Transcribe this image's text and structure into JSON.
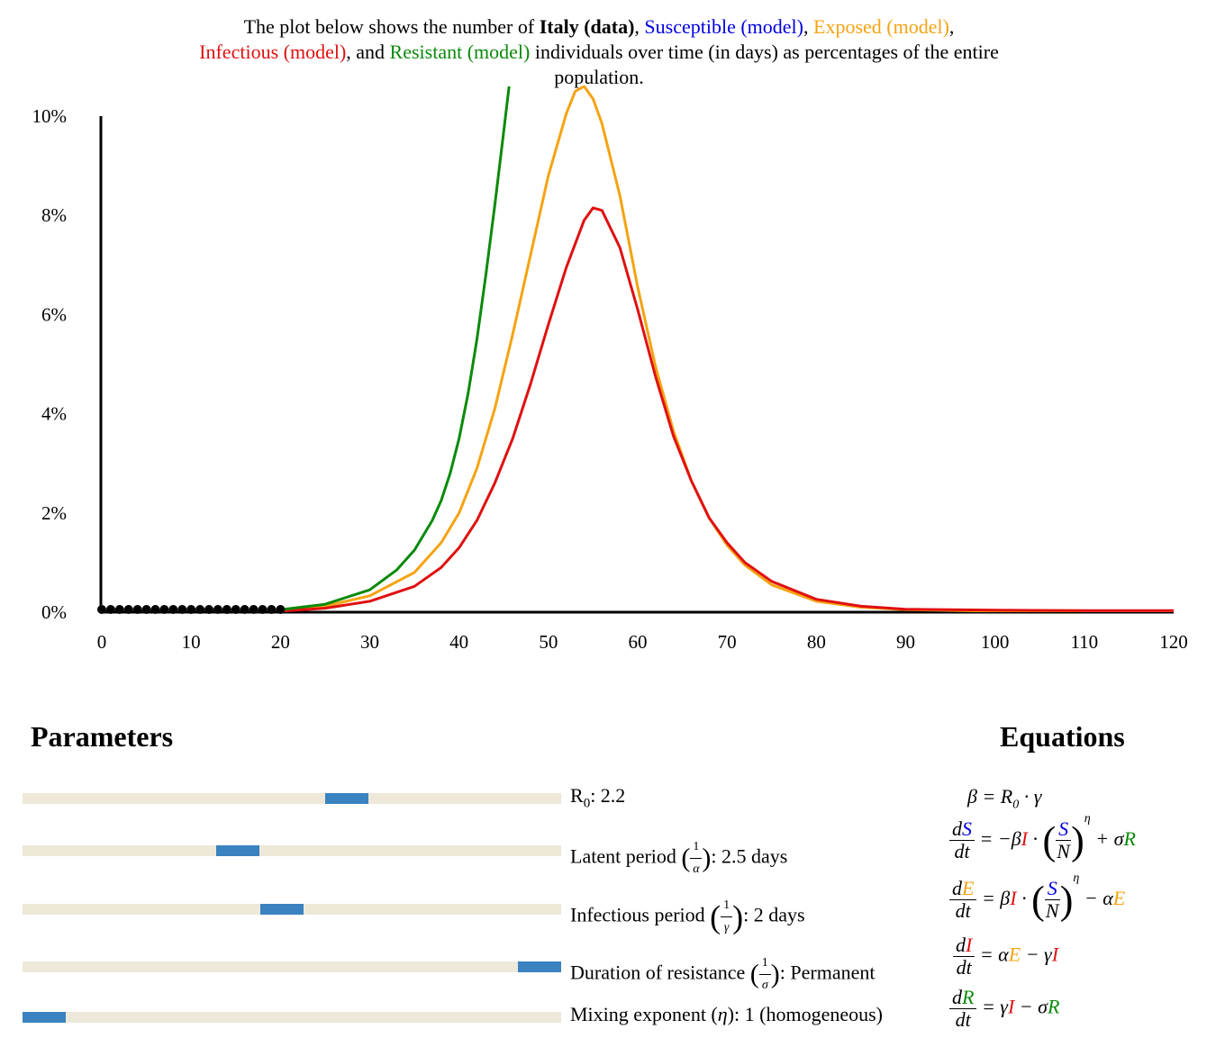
{
  "caption": {
    "p1": "The plot below shows the number of ",
    "italy": "Italy (data)",
    "c1": ", ",
    "susceptible": "Susceptible (model)",
    "c2": ", ",
    "exposed": "Exposed (model)",
    "c3": ",",
    "infectious": "Infectious (model)",
    "c4": ", and ",
    "resistant": "Resistant (model)",
    "p2": " individuals over time (in days) as percentages of the entire population."
  },
  "colors": {
    "susceptible": "#0000e0",
    "exposed": "#f5a312",
    "infectious": "#e01010",
    "resistant": "#0a8a0a",
    "data": "#000000",
    "slider_track": "#eee8d9",
    "slider_thumb": "#3a82c0"
  },
  "chart_data": {
    "type": "line",
    "title": "",
    "xlabel": "",
    "ylabel": "",
    "xlim": [
      0,
      120
    ],
    "ylim": [
      0,
      10
    ],
    "x_ticks": [
      0,
      10,
      20,
      30,
      40,
      50,
      60,
      70,
      80,
      90,
      100,
      110,
      120
    ],
    "y_ticks": [
      0,
      2,
      4,
      6,
      8,
      10
    ],
    "y_tick_labels": [
      "0%",
      "2%",
      "4%",
      "6%",
      "8%",
      "10%"
    ],
    "series": [
      {
        "name": "Exposed (model)",
        "color": "#f5a312",
        "x": [
          20,
          25,
          30,
          35,
          38,
          40,
          42,
          44,
          46,
          48,
          50,
          52,
          53,
          54,
          55,
          56,
          58,
          60,
          62,
          64,
          66,
          68,
          70,
          72,
          75,
          80,
          85,
          90,
          100,
          110,
          120
        ],
        "y": [
          0.04,
          0.12,
          0.33,
          0.8,
          1.4,
          2.0,
          2.9,
          4.1,
          5.6,
          7.2,
          8.8,
          10.05,
          10.5,
          10.6,
          10.35,
          9.85,
          8.4,
          6.55,
          4.95,
          3.65,
          2.65,
          1.9,
          1.35,
          0.95,
          0.55,
          0.22,
          0.1,
          0.05,
          0.02,
          0.01,
          0.01
        ]
      },
      {
        "name": "Infectious (model)",
        "color": "#e01010",
        "x": [
          20,
          25,
          30,
          35,
          38,
          40,
          42,
          44,
          46,
          48,
          50,
          52,
          54,
          55,
          56,
          58,
          60,
          62,
          64,
          66,
          68,
          70,
          72,
          75,
          80,
          85,
          90,
          100,
          110,
          120
        ],
        "y": [
          0.02,
          0.08,
          0.22,
          0.52,
          0.9,
          1.3,
          1.85,
          2.6,
          3.5,
          4.6,
          5.8,
          6.95,
          7.9,
          8.15,
          8.1,
          7.35,
          6.1,
          4.75,
          3.55,
          2.65,
          1.9,
          1.4,
          1.0,
          0.62,
          0.26,
          0.12,
          0.06,
          0.04,
          0.03,
          0.03
        ]
      },
      {
        "name": "Resistant (model)",
        "color": "#0a8a0a",
        "x": [
          20,
          25,
          30,
          33,
          35,
          37,
          38,
          39,
          40,
          41,
          42,
          43,
          44,
          45,
          45.6
        ],
        "y": [
          0.05,
          0.16,
          0.45,
          0.85,
          1.25,
          1.85,
          2.25,
          2.8,
          3.5,
          4.4,
          5.5,
          6.8,
          8.2,
          9.7,
          10.6
        ]
      },
      {
        "name": "Italy (data)",
        "color": "#000000",
        "markers": true,
        "x": [
          0,
          1,
          2,
          3,
          4,
          5,
          6,
          7,
          8,
          9,
          10,
          11,
          12,
          13,
          14,
          15,
          16,
          17,
          18,
          19,
          20
        ],
        "y": [
          0,
          0,
          0,
          0,
          0,
          0,
          0,
          0,
          0,
          0,
          0,
          0,
          0,
          0,
          0,
          0,
          0,
          0,
          0,
          0,
          0
        ]
      }
    ]
  },
  "parameters": {
    "heading": "Parameters",
    "sliders": [
      {
        "pre": "R",
        "sub": "0",
        "post": ": 2.2",
        "frac": "",
        "value_fraction": 0.61
      },
      {
        "pre": "Latent period ",
        "frac_den": "α",
        "post": ": 2.5 days",
        "value_fraction": 0.39
      },
      {
        "pre": "Infectious period ",
        "frac_den": "γ",
        "post": ": 2 days",
        "value_fraction": 0.48
      },
      {
        "pre": "Duration of resistance ",
        "frac_den": "σ",
        "post": ": Permanent",
        "value_fraction": 1.0
      },
      {
        "pre": "Mixing exponent (",
        "sym": "η",
        "post": "): 1 (homogeneous)",
        "value_fraction": 0.0
      }
    ]
  },
  "equations": {
    "heading": "Equations",
    "beta": "β = R",
    "beta_sub": "0",
    "beta_tail": " · γ"
  }
}
